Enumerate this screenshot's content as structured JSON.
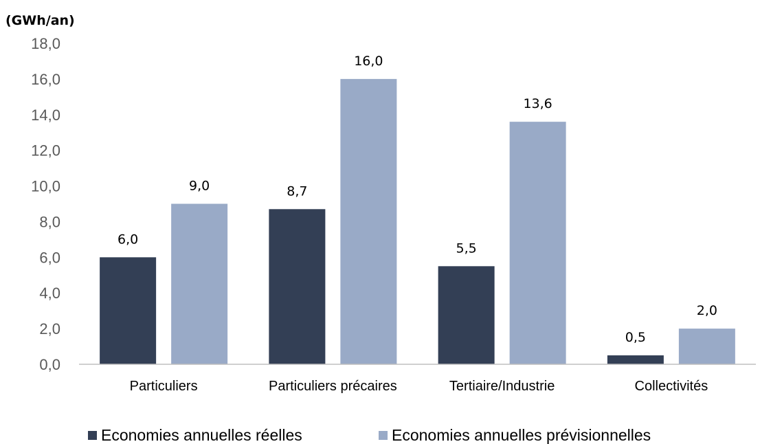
{
  "chart_data": {
    "type": "bar",
    "unit_label": "(GWh/an)",
    "categories": [
      "Particuliers",
      "Particuliers précaires",
      "Tertiaire/Industrie",
      "Collectivités"
    ],
    "series": [
      {
        "name": "Economies annuelles réelles",
        "values": [
          6.0,
          8.7,
          5.5,
          0.5
        ],
        "labels": [
          "6,0",
          "8,7",
          "5,5",
          "0,5"
        ],
        "color": "#333f55"
      },
      {
        "name": "Economies annuelles prévisionnelles",
        "values": [
          9.0,
          16.0,
          13.6,
          2.0
        ],
        "labels": [
          "9,0",
          "16,0",
          "13,6",
          "2,0"
        ],
        "color": "#99aac7"
      }
    ],
    "ylim": [
      0,
      18
    ],
    "yticks": [
      0,
      2,
      4,
      6,
      8,
      10,
      12,
      14,
      16,
      18
    ],
    "ytick_labels": [
      "0,0",
      "2,0",
      "4,0",
      "6,0",
      "8,0",
      "10,0",
      "12,0",
      "14,0",
      "16,0",
      "18,0"
    ],
    "grid": false,
    "legend_position": "bottom"
  }
}
